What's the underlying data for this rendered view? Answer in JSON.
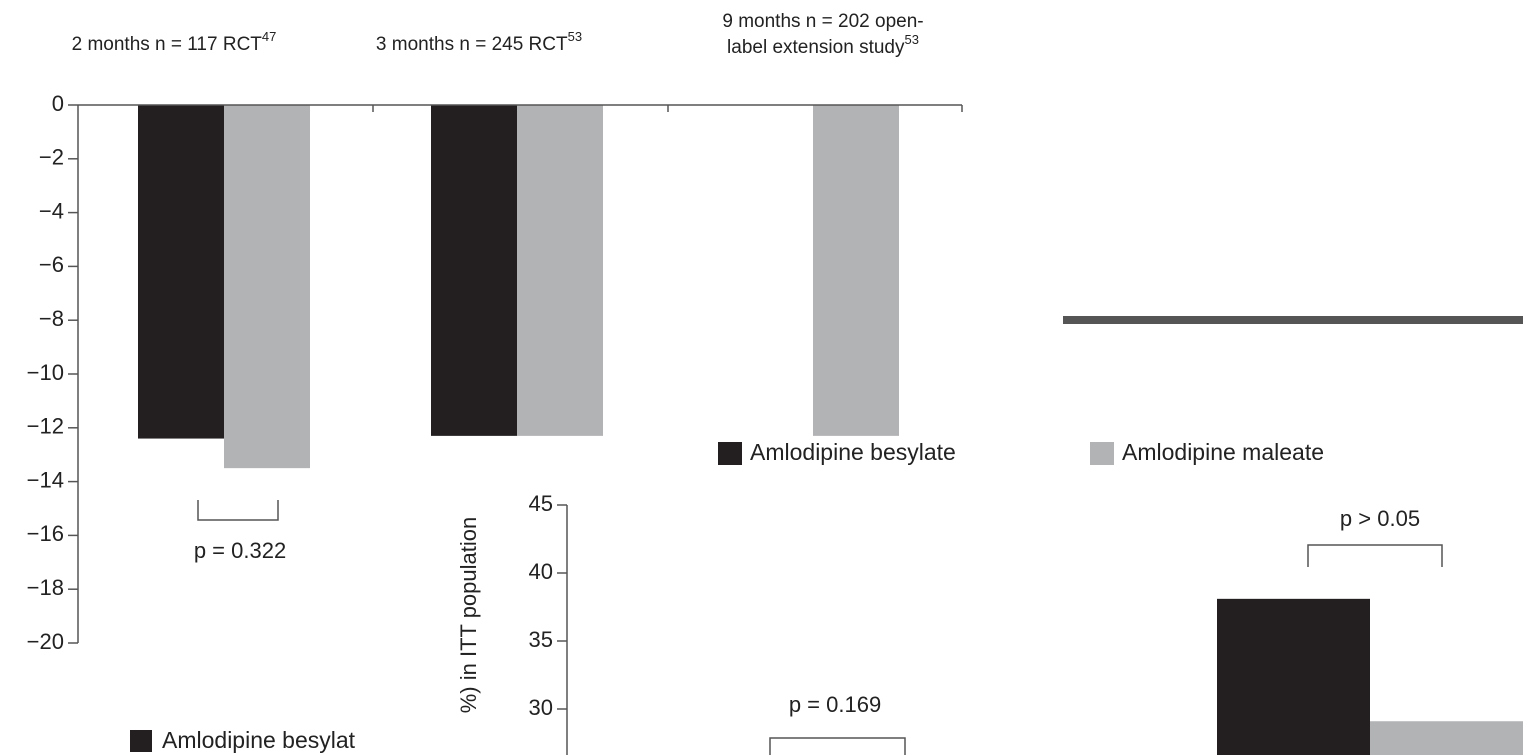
{
  "chart_data": [
    {
      "type": "bar",
      "categories": [
        [
          "2 months n = 117 RCT"
        ],
        [
          "3 months n = 245 RCT"
        ],
        [
          "9 months n = 202 open-",
          "label extension study"
        ]
      ],
      "category_superscripts": [
        "47",
        "53",
        "53"
      ],
      "series": [
        {
          "name": "Amlodipine besylate",
          "color": "#231f20",
          "values": [
            -12.4,
            -12.3,
            null
          ]
        },
        {
          "name": "Amlodipine maleate",
          "color": "#b2b3b5",
          "values": [
            -13.5,
            -12.3,
            -12.3
          ]
        }
      ],
      "ylim": [
        -20,
        0
      ],
      "yticks": [
        0,
        {
          "value": -2,
          "label": "−2"
        },
        {
          "value": -4,
          "label": "−4"
        },
        {
          "value": -6,
          "label": "−6"
        },
        {
          "value": -8,
          "label": "−8"
        },
        {
          "value": -10,
          "label": "−10"
        },
        {
          "value": -12,
          "label": "−12"
        },
        {
          "value": -14,
          "label": "−14"
        },
        {
          "value": -16,
          "label": "−16"
        },
        {
          "value": -18,
          "label": "−18"
        },
        {
          "value": -20,
          "label": "−20"
        }
      ],
      "annotations": [
        "p = 0.322"
      ]
    },
    {
      "type": "bar",
      "y_label": "%) in ITT population",
      "categories": [
        null
      ],
      "series": [
        {
          "name": "Amlodipine besylat",
          "color": "#231f20",
          "values": [
            38.1
          ]
        },
        {
          "color": "#b2b3b5",
          "values": [
            29.1
          ]
        }
      ],
      "ylim": [
        25,
        45
      ],
      "yticks": [
        45,
        40,
        35,
        30
      ],
      "annotations": [
        "p = 0.169",
        "p > 0.05"
      ]
    }
  ]
}
